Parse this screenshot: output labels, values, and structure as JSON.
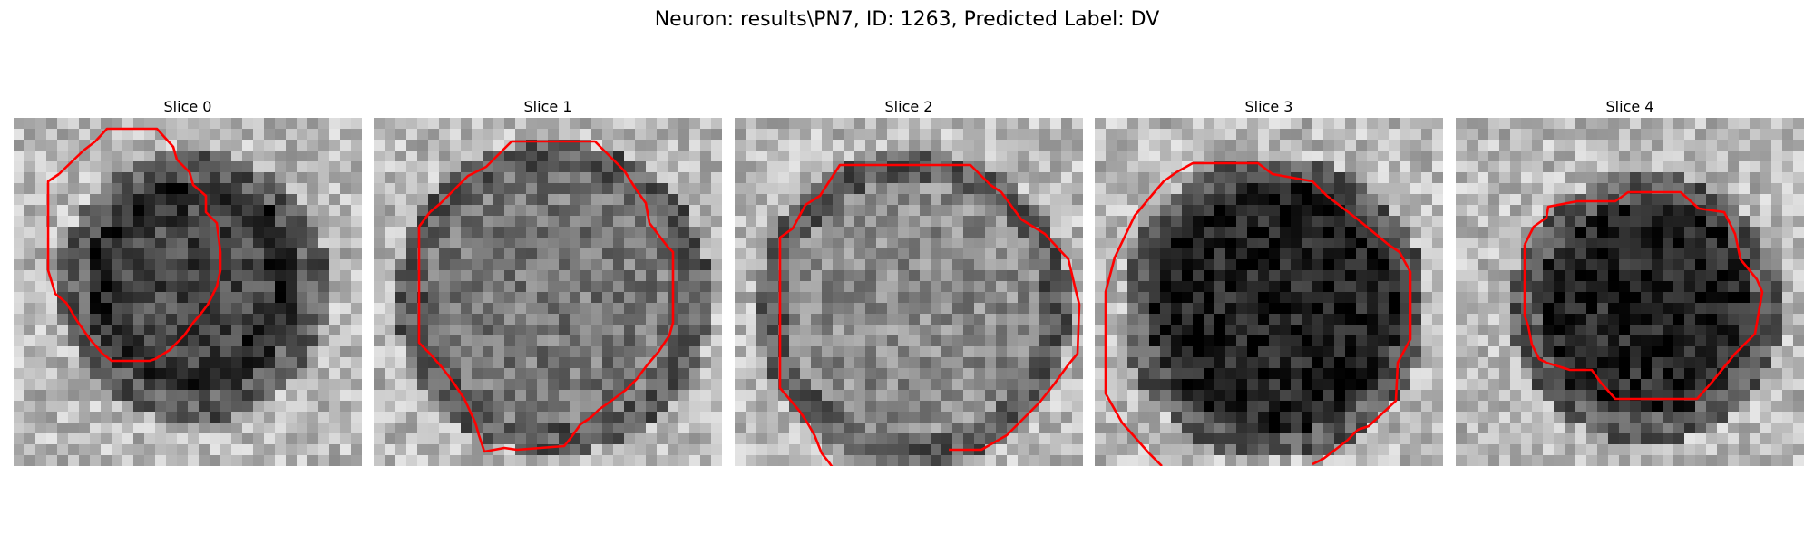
{
  "figure": {
    "title": "Neuron: results\\PN7, ID: 1263, Predicted Label: DV"
  },
  "colors": {
    "contour": "#ff0000",
    "background": "#ffffff"
  },
  "panels": [
    {
      "title": "Slice 0",
      "seed": 11,
      "style": "ring"
    },
    {
      "title": "Slice 1",
      "seed": 23,
      "style": "light"
    },
    {
      "title": "Slice 2",
      "seed": 37,
      "style": "noisy"
    },
    {
      "title": "Slice 3",
      "seed": 41,
      "style": "dark"
    },
    {
      "title": "Slice 4",
      "seed": 53,
      "style": "darksmall"
    }
  ]
}
